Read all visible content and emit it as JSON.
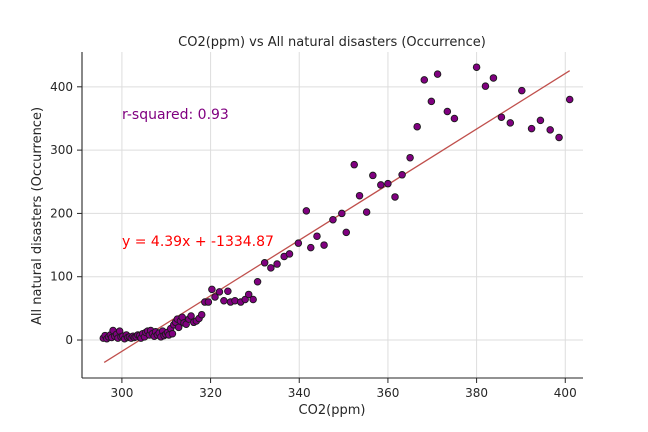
{
  "chart_data": {
    "type": "scatter",
    "title": "CO2(ppm) vs All natural disasters (Occurrence)",
    "xlabel": "CO2(ppm)",
    "ylabel": "All natural disasters (Occurrence)",
    "xlim": [
      291,
      404
    ],
    "ylim": [
      -60,
      455
    ],
    "xticks": [
      300,
      320,
      340,
      360,
      380,
      400
    ],
    "yticks": [
      0,
      100,
      200,
      300,
      400
    ],
    "grid": true,
    "point_color": "#800080",
    "fit_color": "#c0504d",
    "annotations": {
      "r_squared": "r-squared: 0.93",
      "equation": "y = 4.39x + -1334.87"
    },
    "annotation_colors": {
      "r_squared": "#800080",
      "equation": "#ff0000"
    },
    "fit": {
      "slope": 4.39,
      "intercept": -1334.87,
      "x_range": [
        296,
        401
      ]
    },
    "points": [
      [
        295.8,
        3
      ],
      [
        296.2,
        7
      ],
      [
        296.6,
        2
      ],
      [
        297.0,
        5
      ],
      [
        297.4,
        8
      ],
      [
        297.7,
        4
      ],
      [
        298.0,
        15
      ],
      [
        298.4,
        6
      ],
      [
        298.8,
        9
      ],
      [
        299.1,
        3
      ],
      [
        299.5,
        14
      ],
      [
        299.8,
        5
      ],
      [
        300.2,
        6
      ],
      [
        300.6,
        2
      ],
      [
        301.0,
        8
      ],
      [
        301.3,
        4
      ],
      [
        301.7,
        5
      ],
      [
        302.1,
        3
      ],
      [
        302.5,
        6
      ],
      [
        302.8,
        4
      ],
      [
        303.2,
        5
      ],
      [
        303.6,
        8
      ],
      [
        304.0,
        7
      ],
      [
        304.3,
        3
      ],
      [
        304.7,
        10
      ],
      [
        305.1,
        5
      ],
      [
        305.4,
        12
      ],
      [
        305.8,
        14
      ],
      [
        306.2,
        8
      ],
      [
        306.5,
        15
      ],
      [
        306.9,
        10
      ],
      [
        307.3,
        6
      ],
      [
        307.6,
        13
      ],
      [
        308.0,
        8
      ],
      [
        308.4,
        11
      ],
      [
        308.8,
        5
      ],
      [
        309.2,
        14
      ],
      [
        309.5,
        7
      ],
      [
        309.9,
        9
      ],
      [
        310.3,
        12
      ],
      [
        310.6,
        8
      ],
      [
        311.0,
        18
      ],
      [
        311.4,
        10
      ],
      [
        311.7,
        24
      ],
      [
        312.1,
        28
      ],
      [
        312.5,
        33
      ],
      [
        312.8,
        20
      ],
      [
        313.2,
        30
      ],
      [
        313.6,
        36
      ],
      [
        314.0,
        27
      ],
      [
        314.5,
        25
      ],
      [
        315.1,
        33
      ],
      [
        315.6,
        38
      ],
      [
        316.2,
        28
      ],
      [
        316.8,
        30
      ],
      [
        317.4,
        34
      ],
      [
        318.0,
        40
      ],
      [
        318.7,
        60
      ],
      [
        319.5,
        60
      ],
      [
        320.3,
        80
      ],
      [
        321.0,
        68
      ],
      [
        322.0,
        76
      ],
      [
        323.0,
        62
      ],
      [
        323.9,
        77
      ],
      [
        324.5,
        60
      ],
      [
        325.5,
        62
      ],
      [
        326.8,
        60
      ],
      [
        327.8,
        64
      ],
      [
        328.6,
        72
      ],
      [
        329.6,
        64
      ],
      [
        330.6,
        92
      ],
      [
        332.2,
        122
      ],
      [
        333.6,
        114
      ],
      [
        335.0,
        120
      ],
      [
        336.6,
        132
      ],
      [
        337.8,
        136
      ],
      [
        339.8,
        153
      ],
      [
        341.6,
        204
      ],
      [
        342.6,
        146
      ],
      [
        344.0,
        164
      ],
      [
        345.6,
        150
      ],
      [
        347.6,
        190
      ],
      [
        349.6,
        200
      ],
      [
        350.6,
        170
      ],
      [
        352.4,
        277
      ],
      [
        353.6,
        228
      ],
      [
        355.2,
        202
      ],
      [
        356.6,
        260
      ],
      [
        358.4,
        245
      ],
      [
        360.0,
        247
      ],
      [
        361.6,
        226
      ],
      [
        363.2,
        261
      ],
      [
        365.0,
        288
      ],
      [
        366.6,
        337
      ],
      [
        368.2,
        411
      ],
      [
        369.8,
        377
      ],
      [
        371.2,
        420
      ],
      [
        373.4,
        361
      ],
      [
        375.0,
        350
      ],
      [
        380.0,
        431
      ],
      [
        382.0,
        401
      ],
      [
        383.8,
        414
      ],
      [
        385.6,
        352
      ],
      [
        387.6,
        343
      ],
      [
        390.2,
        394
      ],
      [
        392.4,
        334
      ],
      [
        394.4,
        347
      ],
      [
        396.6,
        332
      ],
      [
        398.6,
        320
      ],
      [
        401.0,
        380
      ]
    ]
  }
}
